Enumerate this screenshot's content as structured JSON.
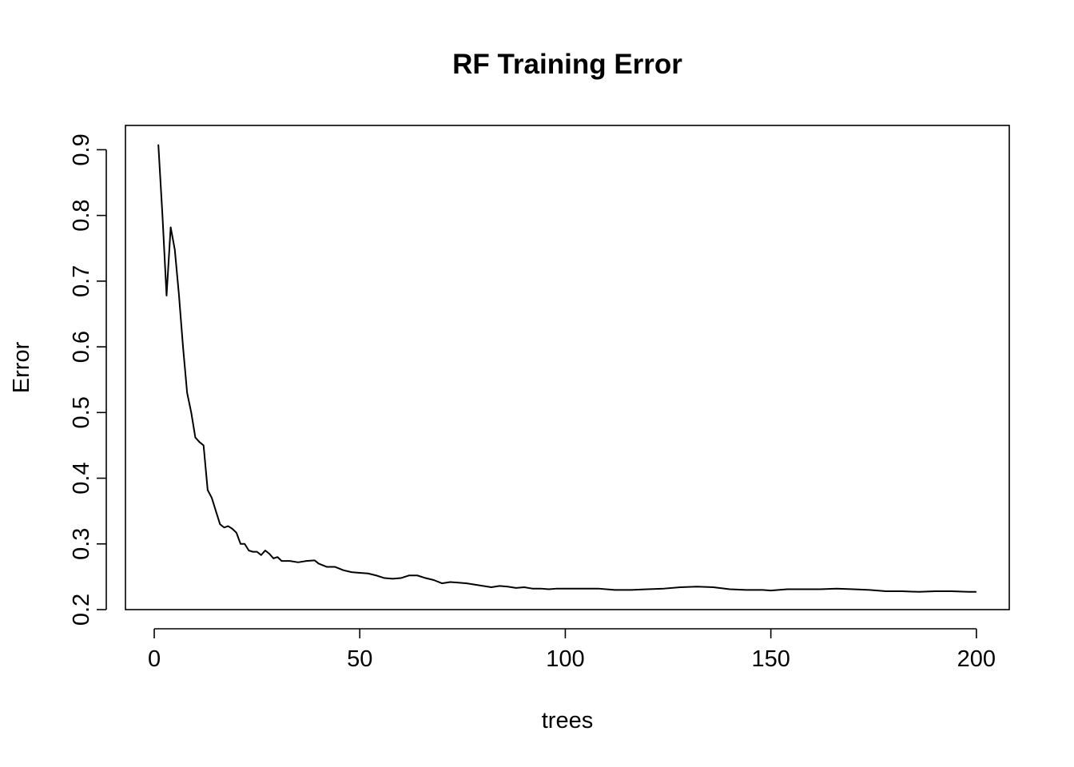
{
  "chart_data": {
    "type": "line",
    "title": "RF Training Error",
    "xlabel": "trees",
    "ylabel": "Error",
    "xlim": [
      -7,
      208
    ],
    "ylim": [
      0.2,
      0.937
    ],
    "x_ticks": [
      0,
      50,
      100,
      150,
      200
    ],
    "y_ticks": [
      0.2,
      0.3,
      0.4,
      0.5,
      0.6,
      0.7,
      0.8,
      0.9
    ],
    "x_tick_labels": [
      "0",
      "50",
      "100",
      "150",
      "200"
    ],
    "y_tick_labels": [
      "0.2",
      "0.3",
      "0.4",
      "0.5",
      "0.6",
      "0.7",
      "0.8",
      "0.9"
    ],
    "grid": false,
    "series": [
      {
        "points": [
          [
            1,
            0.908
          ],
          [
            2,
            0.8
          ],
          [
            3,
            0.678
          ],
          [
            4,
            0.782
          ],
          [
            5,
            0.748
          ],
          [
            6,
            0.68
          ],
          [
            7,
            0.6
          ],
          [
            8,
            0.53
          ],
          [
            9,
            0.5
          ],
          [
            10,
            0.462
          ],
          [
            11,
            0.455
          ],
          [
            12,
            0.45
          ],
          [
            13,
            0.382
          ],
          [
            14,
            0.37
          ],
          [
            15,
            0.35
          ],
          [
            16,
            0.33
          ],
          [
            17,
            0.325
          ],
          [
            18,
            0.327
          ],
          [
            19,
            0.323
          ],
          [
            20,
            0.317
          ],
          [
            21,
            0.3
          ],
          [
            22,
            0.3
          ],
          [
            23,
            0.29
          ],
          [
            24,
            0.288
          ],
          [
            25,
            0.288
          ],
          [
            26,
            0.283
          ],
          [
            27,
            0.29
          ],
          [
            28,
            0.285
          ],
          [
            29,
            0.278
          ],
          [
            30,
            0.28
          ],
          [
            31,
            0.274
          ],
          [
            33,
            0.274
          ],
          [
            35,
            0.272
          ],
          [
            37,
            0.274
          ],
          [
            39,
            0.275
          ],
          [
            40,
            0.27
          ],
          [
            42,
            0.265
          ],
          [
            44,
            0.265
          ],
          [
            46,
            0.26
          ],
          [
            48,
            0.257
          ],
          [
            50,
            0.256
          ],
          [
            52,
            0.255
          ],
          [
            54,
            0.252
          ],
          [
            56,
            0.248
          ],
          [
            58,
            0.247
          ],
          [
            60,
            0.248
          ],
          [
            62,
            0.252
          ],
          [
            64,
            0.252
          ],
          [
            66,
            0.248
          ],
          [
            68,
            0.245
          ],
          [
            70,
            0.24
          ],
          [
            72,
            0.242
          ],
          [
            74,
            0.241
          ],
          [
            76,
            0.24
          ],
          [
            78,
            0.238
          ],
          [
            80,
            0.236
          ],
          [
            82,
            0.234
          ],
          [
            84,
            0.236
          ],
          [
            86,
            0.235
          ],
          [
            88,
            0.233
          ],
          [
            90,
            0.234
          ],
          [
            92,
            0.232
          ],
          [
            94,
            0.232
          ],
          [
            96,
            0.231
          ],
          [
            98,
            0.232
          ],
          [
            100,
            0.232
          ],
          [
            104,
            0.232
          ],
          [
            108,
            0.232
          ],
          [
            112,
            0.23
          ],
          [
            116,
            0.23
          ],
          [
            120,
            0.231
          ],
          [
            124,
            0.232
          ],
          [
            128,
            0.234
          ],
          [
            132,
            0.235
          ],
          [
            136,
            0.234
          ],
          [
            140,
            0.231
          ],
          [
            144,
            0.23
          ],
          [
            148,
            0.23
          ],
          [
            150,
            0.229
          ],
          [
            154,
            0.231
          ],
          [
            158,
            0.231
          ],
          [
            162,
            0.231
          ],
          [
            166,
            0.232
          ],
          [
            170,
            0.231
          ],
          [
            174,
            0.23
          ],
          [
            178,
            0.228
          ],
          [
            182,
            0.228
          ],
          [
            186,
            0.227
          ],
          [
            190,
            0.228
          ],
          [
            194,
            0.228
          ],
          [
            198,
            0.227
          ],
          [
            200,
            0.227
          ]
        ]
      }
    ]
  }
}
